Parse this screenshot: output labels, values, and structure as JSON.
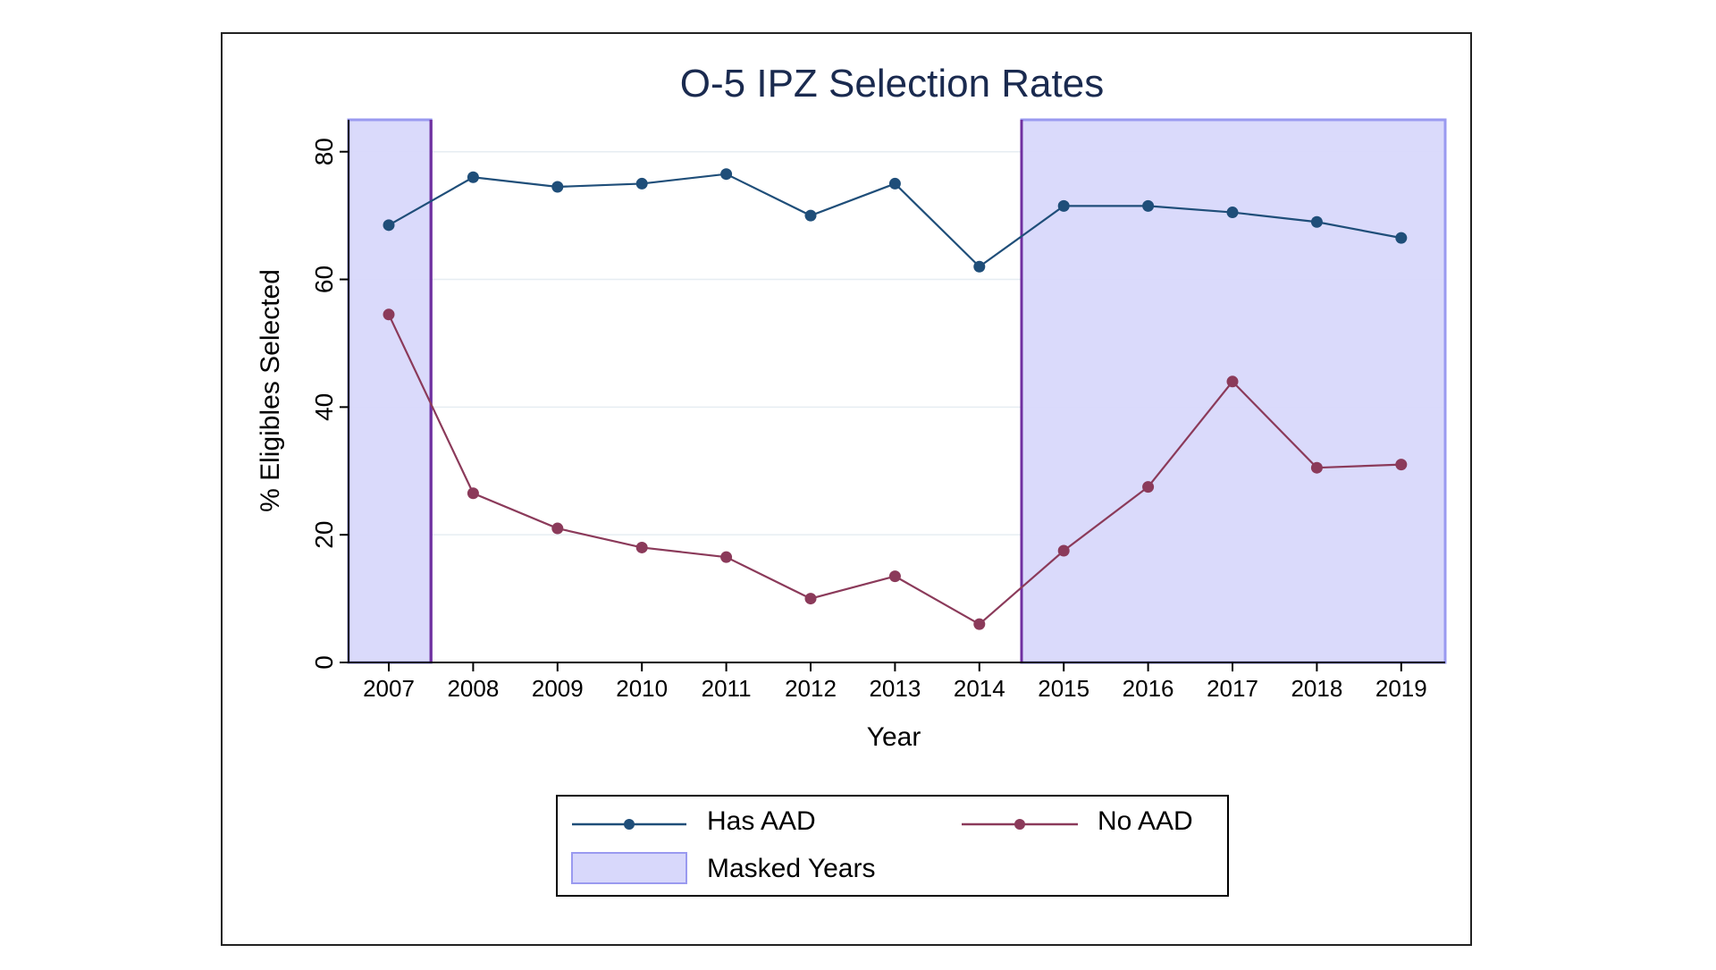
{
  "chart_data": {
    "type": "line",
    "title": "O-5 IPZ Selection Rates",
    "xlabel": "Year",
    "ylabel": "% Eligibles Selected",
    "categories": [
      "2007",
      "2008",
      "2009",
      "2010",
      "2011",
      "2012",
      "2013",
      "2014",
      "2015",
      "2016",
      "2017",
      "2018",
      "2019"
    ],
    "series": [
      {
        "name": "Has AAD",
        "color": "#1f4e79",
        "values": [
          68.5,
          76.0,
          74.5,
          75.0,
          76.5,
          70.0,
          75.0,
          62.0,
          71.5,
          71.5,
          70.5,
          69.0,
          66.5
        ]
      },
      {
        "name": "No AAD",
        "color": "#8b3a5a",
        "values": [
          54.5,
          26.5,
          21.0,
          18.0,
          16.5,
          10.0,
          13.5,
          6.0,
          17.5,
          27.5,
          44.0,
          30.5,
          31.0
        ]
      }
    ],
    "masked": {
      "label": "Masked Years",
      "fill": "#d8d8fb",
      "edge": "#7030a0",
      "ranges": [
        [
          "2007",
          "2007"
        ],
        [
          "2015",
          "2019"
        ]
      ]
    },
    "yticks": [
      0,
      20,
      40,
      60,
      80
    ],
    "ylim": [
      0,
      85
    ],
    "grid": true,
    "legend_position": "bottom"
  }
}
